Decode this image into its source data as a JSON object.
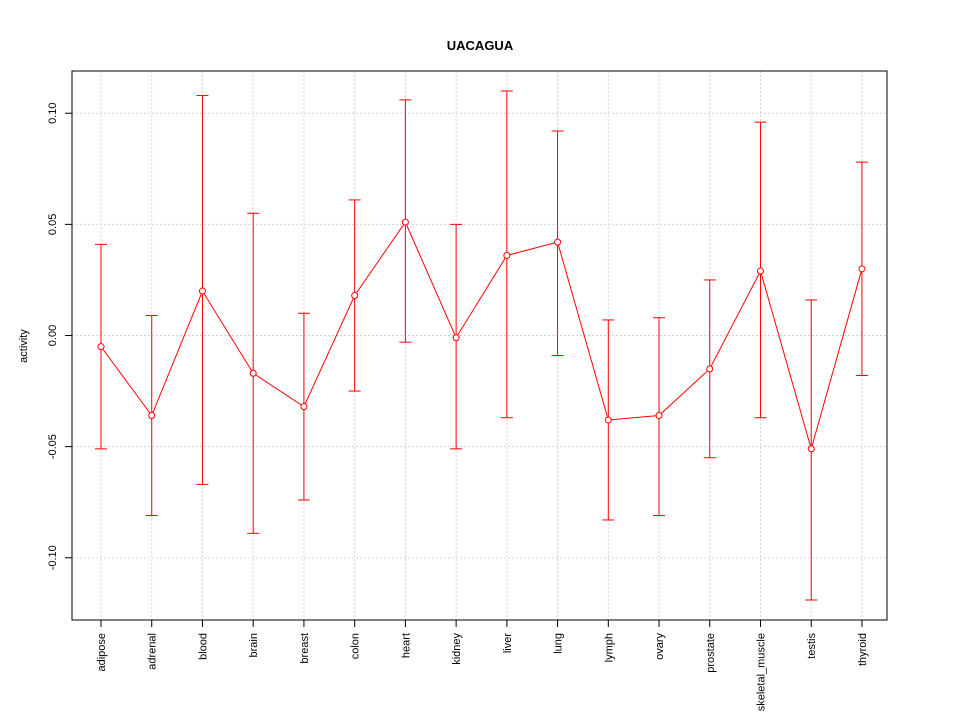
{
  "chart_data": {
    "type": "line",
    "title": "UACAGUA",
    "xlabel": "",
    "ylabel": "activity",
    "categories": [
      "adipose",
      "adrenal",
      "blood",
      "brain",
      "breast",
      "colon",
      "heart",
      "kidney",
      "liver",
      "lung",
      "lymph",
      "ovary",
      "prostate",
      "skeletal_muscle",
      "testis",
      "thyroid"
    ],
    "series": [
      {
        "values": [
          -0.005,
          -0.036,
          0.02,
          -0.017,
          -0.032,
          0.018,
          0.051,
          -0.001,
          0.036,
          0.042,
          -0.038,
          -0.036,
          -0.015,
          0.029,
          -0.051,
          0.03
        ],
        "upper": [
          0.041,
          0.009,
          0.108,
          0.055,
          0.01,
          0.061,
          0.106,
          0.05,
          0.11,
          0.092,
          0.007,
          0.008,
          0.025,
          0.096,
          0.016,
          0.078
        ],
        "lower": [
          -0.051,
          -0.081,
          -0.067,
          -0.089,
          -0.074,
          -0.025,
          -0.003,
          -0.051,
          -0.037,
          -0.009,
          -0.083,
          -0.081,
          -0.055,
          -0.037,
          -0.119,
          -0.018
        ]
      }
    ],
    "yticks": [
      -0.1,
      -0.05,
      0.0,
      0.05,
      0.1
    ],
    "ytick_labels": [
      "-0.10",
      "-0.05",
      "0.00",
      "0.05",
      "0.10"
    ],
    "ylim": [
      -0.128,
      0.119
    ],
    "grid": true,
    "colors": {
      "series": "#ff0000",
      "grid": "#d3d3d3",
      "axis": "#000000"
    }
  }
}
